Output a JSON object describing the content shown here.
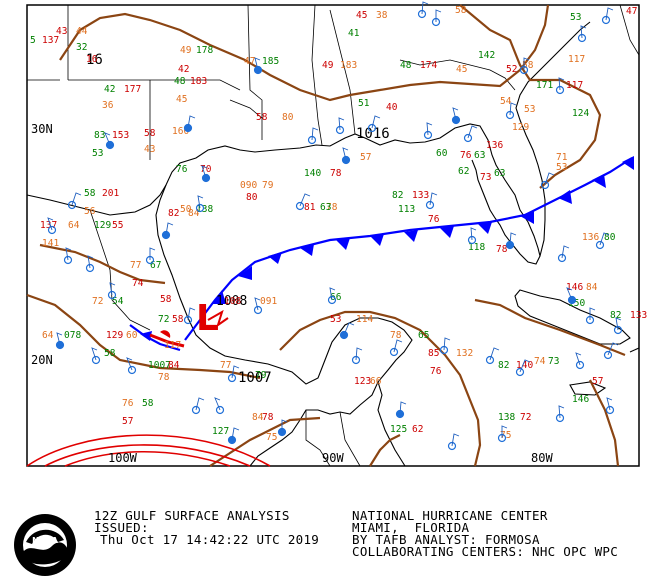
{
  "map": {
    "lat_labels": [
      {
        "text": "30N",
        "lat": 30
      },
      {
        "text": "20N",
        "lat": 20
      }
    ],
    "lon_labels": [
      {
        "text": "100W",
        "lon": -100
      },
      {
        "text": "90W",
        "lon": -90
      },
      {
        "text": "80W",
        "lon": -80
      }
    ],
    "pressure_centers": [
      {
        "type": "L",
        "value": "1008",
        "color": "#e00000"
      }
    ],
    "isobar_labels": [
      {
        "text": "16"
      },
      {
        "text": "1016"
      },
      {
        "text": "1007"
      }
    ],
    "station_numbers": [
      "45",
      "38",
      "41",
      "43",
      "58",
      "5",
      "137",
      "44",
      "32",
      "16",
      "49",
      "178",
      "42",
      "47",
      "185",
      "49",
      "183",
      "48",
      "174",
      "45",
      "142",
      "52",
      "58",
      "53",
      "47",
      "117",
      "42",
      "177",
      "36",
      "48",
      "183",
      "45",
      "51",
      "40",
      "54",
      "171",
      "117",
      "53",
      "124",
      "58",
      "160",
      "83",
      "153",
      "43",
      "53",
      "58",
      "80",
      "60",
      "76",
      "57",
      "63",
      "136",
      "129",
      "62",
      "73",
      "71",
      "76",
      "70",
      "53",
      "63",
      "80",
      "79",
      "140",
      "78",
      "090",
      "58",
      "201",
      "56",
      "82",
      "133",
      "50",
      "138",
      "81",
      "78",
      "113",
      "76",
      "136",
      "80",
      "137",
      "64",
      "129",
      "55",
      "141",
      "63",
      "82",
      "84",
      "118",
      "78",
      "77",
      "67",
      "146",
      "84",
      "150",
      "74",
      "72",
      "54",
      "108",
      "091",
      "66",
      "53",
      "114",
      "82",
      "133",
      "64",
      "078",
      "58",
      "78",
      "65",
      "129",
      "60",
      "58",
      "85",
      "132",
      "72",
      "76",
      "78",
      "82",
      "140",
      "74",
      "73",
      "58",
      "117",
      "1007",
      "84",
      "77",
      "79",
      "123",
      "66",
      "125",
      "62",
      "76",
      "58",
      "57",
      "84",
      "127",
      "78",
      "75",
      "138",
      "72",
      "75",
      "146",
      "57"
    ],
    "colors": {
      "coast": "#000000",
      "isobar": "#8b4513",
      "cold_front": "#0000ff",
      "warm_front": "#e00000",
      "low": "#e00000",
      "temperature": "#cc0000",
      "dewpoint": "#008000",
      "pressure": "#e07020",
      "station": "#1f6fd8",
      "wind_barb": "#1f5fbf",
      "tropical_isobar": "#e00000"
    }
  },
  "footer": {
    "title": "12Z GULF SURFACE ANALYSIS",
    "issued_label": "ISSUED:",
    "issued_time": "Thu Oct 17 14:42:22 UTC 2019",
    "center": "NATIONAL HURRICANE CENTER",
    "city": "MIAMI,  FLORIDA",
    "analyst": "BY TAFB ANALYST: FORMOSA",
    "collab": "COLLABORATING CENTERS: NHC OPC WPC",
    "logo_text": "NOAA"
  }
}
